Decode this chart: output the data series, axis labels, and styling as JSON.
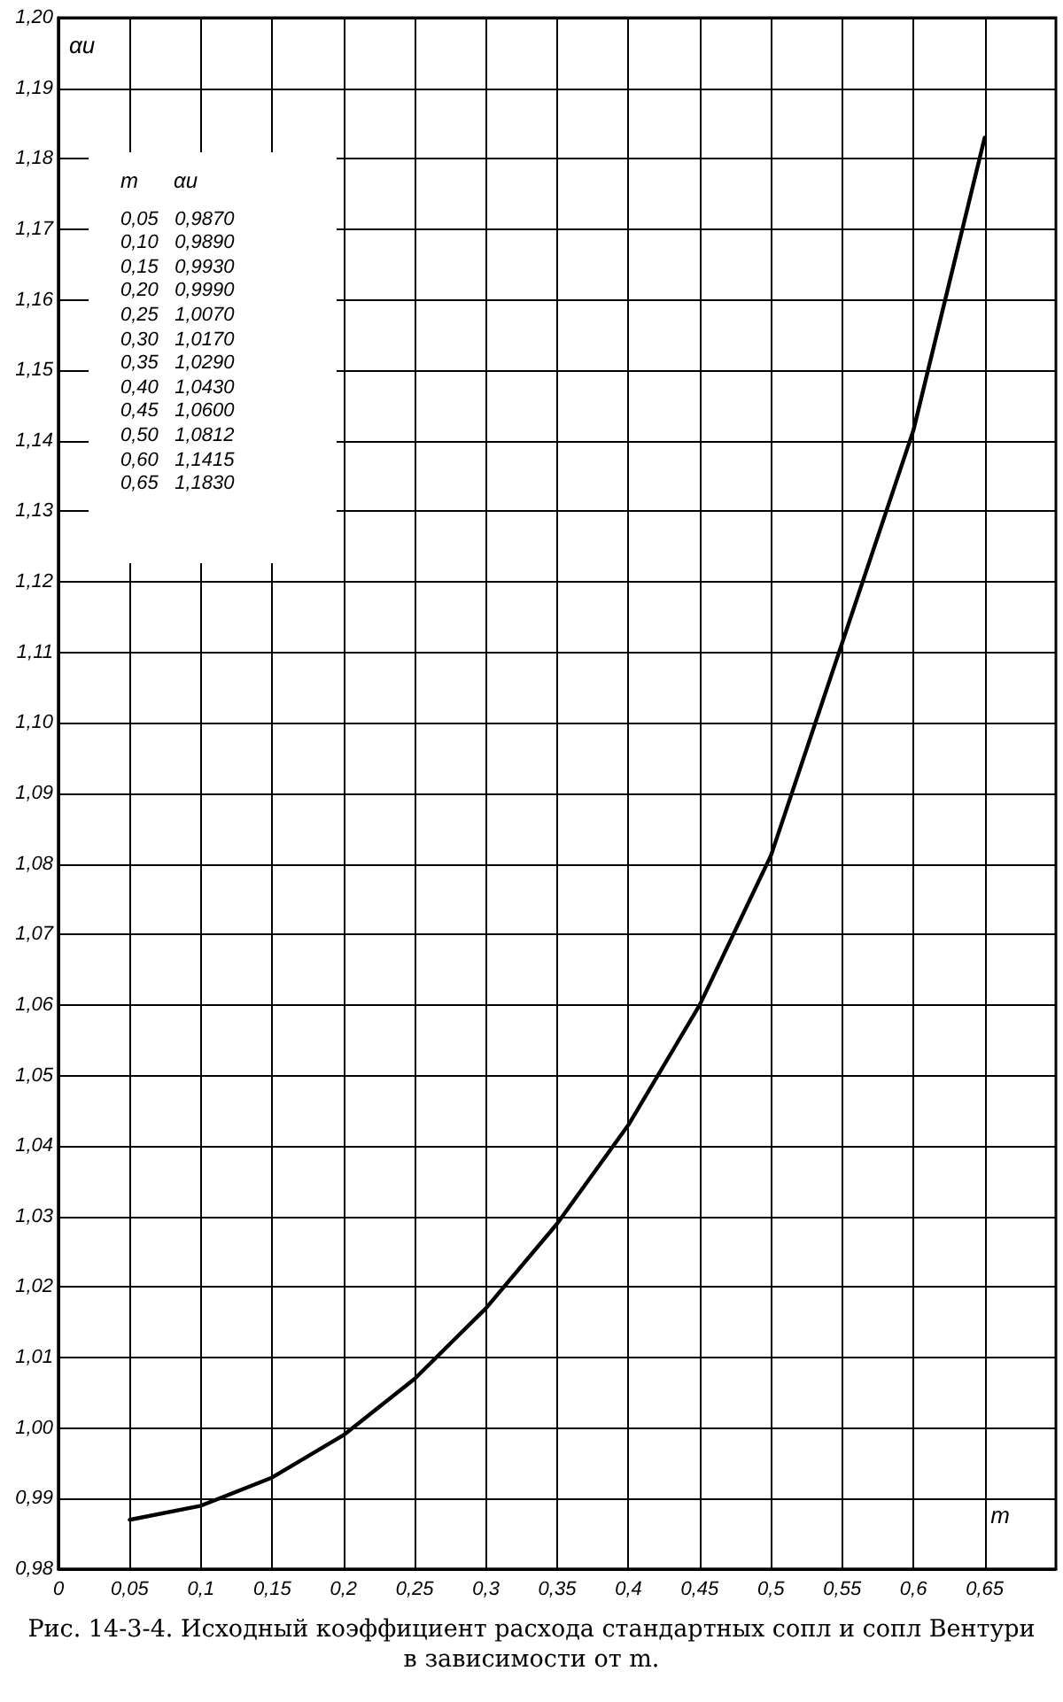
{
  "chart_data": {
    "type": "line",
    "title": "Рис. 14-3-4. Исходный коэффициент расхода стандартных сопл и сопл Вентури в зависимости от m.",
    "xlabel": "m",
    "ylabel": "αи",
    "x": [
      0.05,
      0.1,
      0.15,
      0.2,
      0.25,
      0.3,
      0.35,
      0.4,
      0.45,
      0.5,
      0.6,
      0.65
    ],
    "series": [
      {
        "color": "#000000",
        "values": [
          0.987,
          0.989,
          0.993,
          0.999,
          1.007,
          1.017,
          1.029,
          1.043,
          1.06,
          1.0812,
          1.1415,
          1.183
        ]
      }
    ],
    "annotations": [
      "m      αи",
      "0,05   0,9870",
      "0,10   0,9890",
      "0,15   0,9930",
      "0,20   0,9990",
      "0,25   1,0070",
      "0,30   1,0170",
      "0,35   1,0290",
      "0,40   1,0430",
      "0,45   1,0600",
      "0,50   1,0812",
      "0,60   1,1415",
      "0,65   1,1830"
    ],
    "xlim": [
      0,
      0.7
    ],
    "xticks": [
      {
        "value": 0,
        "label": "0"
      },
      {
        "value": 0.05,
        "label": "0,05"
      },
      {
        "value": 0.1,
        "label": "0,1"
      },
      {
        "value": 0.15,
        "label": "0,15"
      },
      {
        "value": 0.2,
        "label": "0,2"
      },
      {
        "value": 0.25,
        "label": "0,25"
      },
      {
        "value": 0.3,
        "label": "0,3"
      },
      {
        "value": 0.35,
        "label": "0,35"
      },
      {
        "value": 0.4,
        "label": "0,4"
      },
      {
        "value": 0.45,
        "label": "0,45"
      },
      {
        "value": 0.5,
        "label": "0,5"
      },
      {
        "value": 0.55,
        "label": "0,55"
      },
      {
        "value": 0.6,
        "label": "0,6"
      },
      {
        "value": 0.65,
        "label": "0,65"
      }
    ],
    "ylim": [
      0.98,
      1.2
    ],
    "yticks": [
      {
        "value": 0.98,
        "label": "0,98"
      },
      {
        "value": 0.99,
        "label": "0,99"
      },
      {
        "value": 1.0,
        "label": "1,00"
      },
      {
        "value": 1.01,
        "label": "1,01"
      },
      {
        "value": 1.02,
        "label": "1,02"
      },
      {
        "value": 1.03,
        "label": "1,03"
      },
      {
        "value": 1.04,
        "label": "1,04"
      },
      {
        "value": 1.05,
        "label": "1,05"
      },
      {
        "value": 1.06,
        "label": "1,06"
      },
      {
        "value": 1.07,
        "label": "1,07"
      },
      {
        "value": 1.08,
        "label": "1,08"
      },
      {
        "value": 1.09,
        "label": "1,09"
      },
      {
        "value": 1.1,
        "label": "1,10"
      },
      {
        "value": 1.11,
        "label": "1,11"
      },
      {
        "value": 1.12,
        "label": "1,12"
      },
      {
        "value": 1.13,
        "label": "1,13"
      },
      {
        "value": 1.14,
        "label": "1,14"
      },
      {
        "value": 1.15,
        "label": "1,15"
      },
      {
        "value": 1.16,
        "label": "1,16"
      },
      {
        "value": 1.17,
        "label": "1,17"
      },
      {
        "value": 1.18,
        "label": "1,18"
      },
      {
        "value": 1.19,
        "label": "1,19"
      },
      {
        "value": 1.2,
        "label": "1,20"
      }
    ],
    "grid": true,
    "marker": "none",
    "line_style": "solid"
  }
}
